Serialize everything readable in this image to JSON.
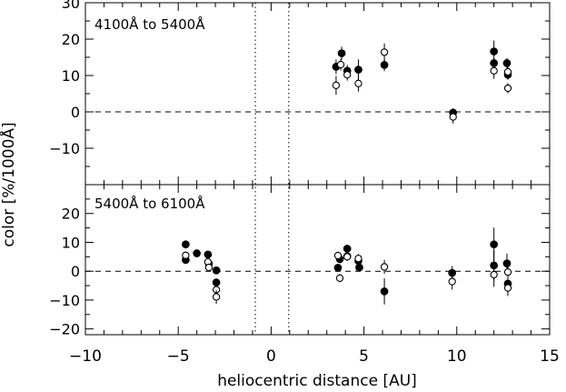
{
  "chart_data": {
    "type": "scatter",
    "xlabel": "heliocentric distance [AU]",
    "ylabel": "color [%/1000Å]",
    "xlim": [
      -10,
      15
    ],
    "x_ticks": [
      -10,
      -5,
      0,
      5,
      10,
      15
    ],
    "x_tick_labels": [
      "−10",
      "−5",
      "0",
      "5",
      "10",
      "15"
    ],
    "vertical_dotted_lines_x": [
      -0.85,
      0.95
    ],
    "reference_line_y": 0,
    "panels": [
      {
        "label": "4100Å to 5400Å",
        "ylim": [
          -20,
          30
        ],
        "y_ticks": [
          -10,
          0,
          10,
          20,
          30
        ],
        "y_tick_labels": [
          "−10",
          "0",
          "10",
          "20",
          "30"
        ],
        "series": [
          {
            "marker": "filled-circle",
            "points": [
              {
                "x": 3.5,
                "y": 12.4,
                "err": 2.0
              },
              {
                "x": 3.8,
                "y": 16.1,
                "err": 1.8
              },
              {
                "x": 4.1,
                "y": 11.3,
                "err": 1.6
              },
              {
                "x": 4.7,
                "y": 11.6,
                "err": 2.8
              },
              {
                "x": 6.1,
                "y": 12.9,
                "err": 1.7
              },
              {
                "x": 9.8,
                "y": -0.2,
                "err": 1.2
              },
              {
                "x": 12.0,
                "y": 16.6,
                "err": 3.0
              },
              {
                "x": 12.0,
                "y": 13.4,
                "err": 1.4
              },
              {
                "x": 12.7,
                "y": 13.4,
                "err": 1.4
              },
              {
                "x": 12.75,
                "y": 10.2,
                "err": 1.4
              }
            ]
          },
          {
            "marker": "open-circle",
            "points": [
              {
                "x": 3.5,
                "y": 7.3,
                "err": 2.6
              },
              {
                "x": 3.75,
                "y": 13.0,
                "err": 1.6
              },
              {
                "x": 4.1,
                "y": 10.2,
                "err": 1.6
              },
              {
                "x": 4.7,
                "y": 7.8,
                "err": 2.2
              },
              {
                "x": 6.1,
                "y": 16.4,
                "err": 2.4
              },
              {
                "x": 9.8,
                "y": -1.4,
                "err": 1.8
              },
              {
                "x": 12.0,
                "y": 11.3,
                "err": 2.2
              },
              {
                "x": 12.75,
                "y": 11.0,
                "err": 1.6
              },
              {
                "x": 12.75,
                "y": 6.5,
                "err": 1.4
              }
            ]
          }
        ]
      },
      {
        "label": "5400Å to 6100Å",
        "ylim": [
          -22,
          30
        ],
        "y_ticks": [
          -20,
          -10,
          0,
          10,
          20
        ],
        "y_tick_labels": [
          "−20",
          "−10",
          "0",
          "10",
          "20"
        ],
        "series": [
          {
            "marker": "filled-circle",
            "points": [
              {
                "x": -4.6,
                "y": 9.3,
                "err": 1.4
              },
              {
                "x": -4.6,
                "y": 3.9,
                "err": 1.2
              },
              {
                "x": -4.0,
                "y": 6.2,
                "err": 1.0
              },
              {
                "x": -3.4,
                "y": 5.8,
                "err": 1.2
              },
              {
                "x": -3.35,
                "y": 2.6,
                "err": 1.2
              },
              {
                "x": -2.95,
                "y": 0.3,
                "err": 1.0
              },
              {
                "x": -2.95,
                "y": -3.9,
                "err": 1.4
              },
              {
                "x": 3.6,
                "y": 1.2,
                "err": 1.2
              },
              {
                "x": 3.7,
                "y": 4.2,
                "err": 1.4
              },
              {
                "x": 4.1,
                "y": 7.8,
                "err": 1.4
              },
              {
                "x": 4.1,
                "y": 5.2,
                "err": 1.4
              },
              {
                "x": 4.7,
                "y": 3.6,
                "err": 1.4
              },
              {
                "x": 4.75,
                "y": 1.3,
                "err": 1.2
              },
              {
                "x": 6.1,
                "y": -7.0,
                "err": 4.5
              },
              {
                "x": 9.75,
                "y": -0.6,
                "err": 2.4
              },
              {
                "x": 12.0,
                "y": 9.3,
                "err": 5.8
              },
              {
                "x": 12.0,
                "y": 2.0,
                "err": 5.2
              },
              {
                "x": 12.7,
                "y": 2.7,
                "err": 3.4
              },
              {
                "x": 12.75,
                "y": -4.3,
                "err": 3.0
              }
            ]
          },
          {
            "marker": "open-circle",
            "points": [
              {
                "x": -4.6,
                "y": 5.5,
                "err": 1.2
              },
              {
                "x": -3.4,
                "y": 3.2,
                "err": 1.2
              },
              {
                "x": -3.35,
                "y": 1.3,
                "err": 1.2
              },
              {
                "x": -2.95,
                "y": -6.4,
                "err": 2.4
              },
              {
                "x": -2.95,
                "y": -8.9,
                "err": 2.4
              },
              {
                "x": 3.6,
                "y": 5.4,
                "err": 1.4
              },
              {
                "x": 3.7,
                "y": -2.4,
                "err": 1.4
              },
              {
                "x": 4.1,
                "y": 5.0,
                "err": 1.4
              },
              {
                "x": 4.7,
                "y": 4.4,
                "err": 1.6
              },
              {
                "x": 6.1,
                "y": 1.5,
                "err": 2.4
              },
              {
                "x": 9.75,
                "y": -3.6,
                "err": 2.8
              },
              {
                "x": 12.0,
                "y": -1.2,
                "err": 4.2
              },
              {
                "x": 12.75,
                "y": -0.3,
                "err": 3.2
              },
              {
                "x": 12.75,
                "y": -5.8,
                "err": 2.8
              }
            ]
          }
        ]
      }
    ]
  }
}
